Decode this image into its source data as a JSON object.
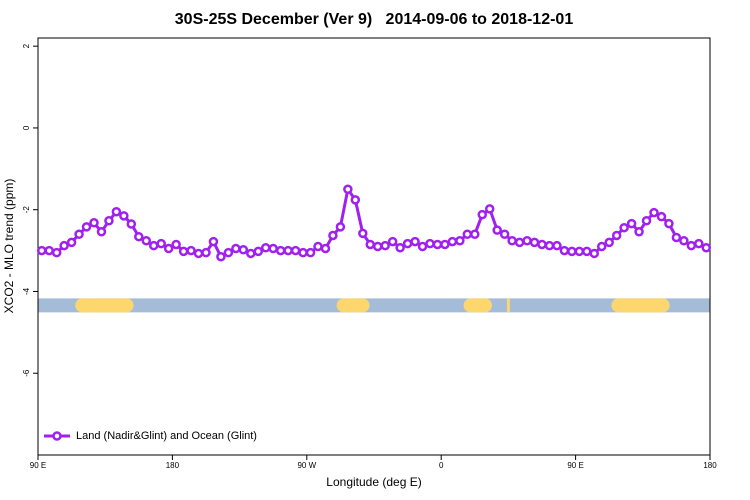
{
  "chart_data": {
    "type": "line",
    "title": "30S-25S December (Ver 9)   2014-09-06 to 2018-12-01",
    "xlabel": "Longitude (deg E)",
    "ylabel": "XCO2 - MLO trend (ppm)",
    "xlim": [
      90,
      540
    ],
    "ylim": [
      -8,
      2.2
    ],
    "xticks": [
      {
        "value": 90,
        "label": "90 E"
      },
      180,
      {
        "value": 270,
        "label": "90 W"
      },
      {
        "value": 360,
        "label": "0"
      },
      {
        "value": 450,
        "label": "90 E"
      },
      {
        "value": 540,
        "label": "180"
      }
    ],
    "yticks": [
      2,
      0,
      -2,
      -4,
      -6
    ],
    "legend": "bottom-left",
    "x": [
      92.5,
      97.5,
      102.5,
      107.5,
      112.5,
      117.5,
      122.5,
      127.5,
      132.5,
      137.5,
      142.5,
      147.5,
      152.5,
      157.5,
      162.5,
      167.5,
      172.5,
      177.5,
      182.5,
      187.5,
      192.5,
      197.5,
      202.5,
      207.5,
      212.5,
      217.5,
      222.5,
      227.5,
      232.5,
      237.5,
      242.5,
      247.5,
      252.5,
      257.5,
      262.5,
      267.5,
      272.5,
      277.5,
      282.5,
      287.5,
      292.5,
      297.5,
      302.5,
      307.5,
      312.5,
      317.5,
      322.5,
      327.5,
      332.5,
      337.5,
      342.5,
      347.5,
      352.5,
      357.5,
      362.5,
      367.5,
      372.5,
      377.5,
      382.5,
      387.5,
      392.5,
      397.5,
      402.5,
      407.5,
      412.5,
      417.5,
      422.5,
      427.5,
      432.5,
      437.5,
      442.5,
      447.5,
      452.5,
      457.5,
      462.5,
      467.5,
      472.5,
      477.5,
      482.5,
      487.5,
      492.5,
      497.5,
      502.5,
      507.5,
      512.5,
      517.5,
      522.5,
      527.5,
      532.5,
      537.5
    ],
    "series": [
      {
        "name": "Land (Nadir&Glint) and Ocean (Glint)",
        "color": "#a020f0",
        "values": [
          -3.0,
          -3.0,
          -3.05,
          -2.88,
          -2.8,
          -2.6,
          -2.42,
          -2.32,
          -2.54,
          -2.27,
          -2.05,
          -2.15,
          -2.35,
          -2.66,
          -2.76,
          -2.88,
          -2.83,
          -2.95,
          -2.85,
          -3.02,
          -3.0,
          -3.07,
          -3.05,
          -2.78,
          -3.15,
          -3.05,
          -2.95,
          -2.98,
          -3.07,
          -3.02,
          -2.93,
          -2.95,
          -3.0,
          -3.0,
          -3.0,
          -3.05,
          -3.05,
          -2.9,
          -2.95,
          -2.63,
          -2.42,
          -1.5,
          -1.76,
          -2.58,
          -2.85,
          -2.9,
          -2.88,
          -2.78,
          -2.93,
          -2.83,
          -2.78,
          -2.9,
          -2.83,
          -2.85,
          -2.85,
          -2.78,
          -2.76,
          -2.6,
          -2.6,
          -2.12,
          -1.98,
          -2.5,
          -2.6,
          -2.76,
          -2.8,
          -2.76,
          -2.8,
          -2.85,
          -2.88,
          -2.88,
          -3.0,
          -3.02,
          -3.02,
          -3.02,
          -3.07,
          -2.9,
          -2.8,
          -2.63,
          -2.44,
          -2.34,
          -2.54,
          -2.27,
          -2.07,
          -2.17,
          -2.34,
          -2.68,
          -2.76,
          -2.88,
          -2.83,
          -2.93
        ]
      }
    ],
    "surface_band": {
      "y": -4.34,
      "ocean_color": "#a5bcd9",
      "land_color": "#fdd66e",
      "land_spans": [
        [
          115,
          154
        ],
        [
          290,
          312
        ],
        [
          375,
          394
        ],
        [
          404,
          406
        ],
        [
          474,
          513
        ]
      ]
    }
  }
}
